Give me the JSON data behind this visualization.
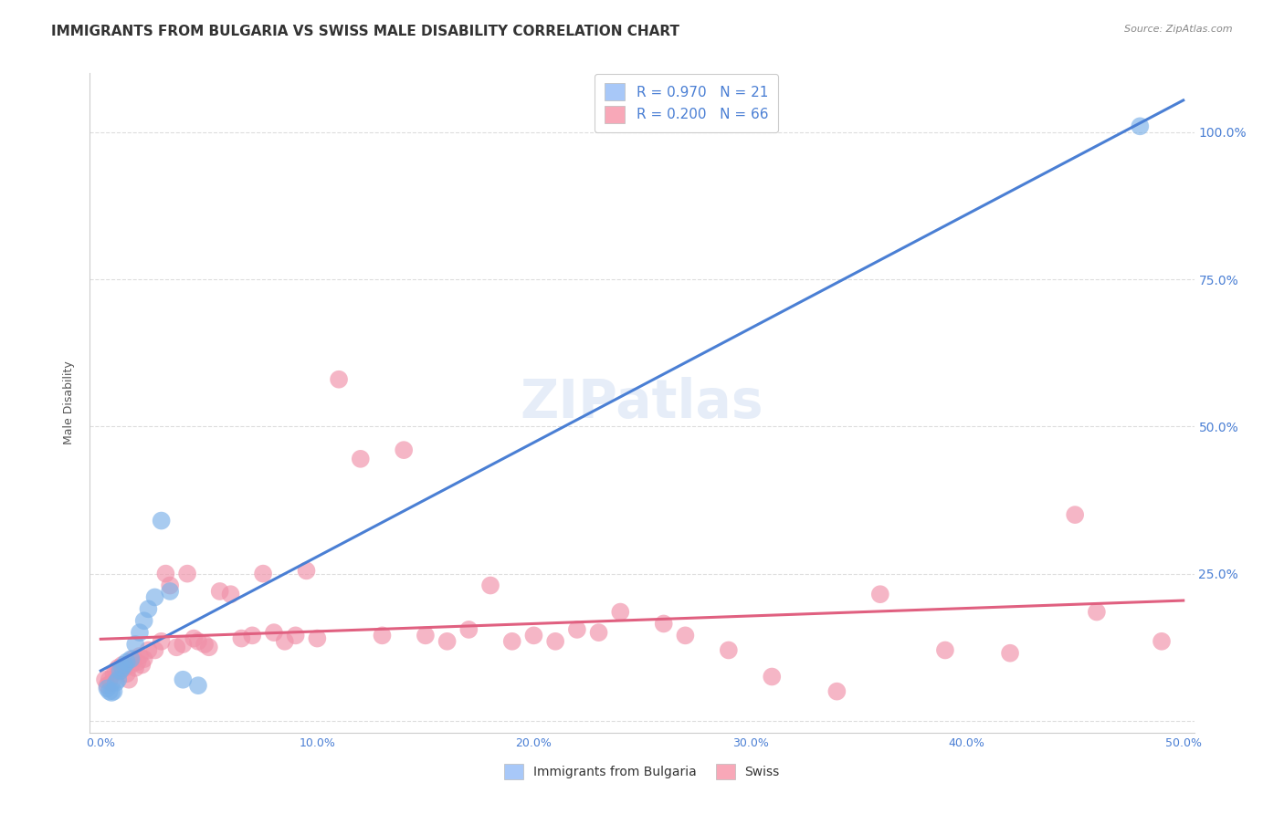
{
  "title": "IMMIGRANTS FROM BULGARIA VS SWISS MALE DISABILITY CORRELATION CHART",
  "source": "Source: ZipAtlas.com",
  "ylabel": "Male Disability",
  "xlim": [
    0.0,
    50.0
  ],
  "ylim": [
    -2.0,
    110.0
  ],
  "y_ticks": [
    0.0,
    25.0,
    50.0,
    75.0,
    100.0
  ],
  "y_tick_labels": [
    "",
    "25.0%",
    "50.0%",
    "75.0%",
    "100.0%"
  ],
  "x_ticks": [
    0.0,
    10.0,
    20.0,
    30.0,
    40.0,
    50.0
  ],
  "x_tick_labels": [
    "0.0%",
    "10.0%",
    "20.0%",
    "30.0%",
    "40.0%",
    "50.0%"
  ],
  "legend_labels_bottom": [
    "Immigrants from Bulgaria",
    "Swiss"
  ],
  "bulgaria_scatter_x": [
    0.3,
    0.4,
    0.5,
    0.6,
    0.7,
    0.8,
    0.9,
    1.0,
    1.1,
    1.2,
    1.4,
    1.6,
    1.8,
    2.0,
    2.2,
    2.5,
    2.8,
    3.2,
    3.8,
    4.5,
    48.0
  ],
  "bulgaria_scatter_y": [
    5.5,
    5.0,
    4.8,
    5.0,
    6.5,
    7.0,
    8.5,
    9.0,
    9.5,
    10.0,
    10.5,
    13.0,
    15.0,
    17.0,
    19.0,
    21.0,
    34.0,
    22.0,
    7.0,
    6.0,
    101.0
  ],
  "swiss_scatter_x": [
    0.2,
    0.3,
    0.4,
    0.5,
    0.6,
    0.7,
    0.8,
    0.9,
    1.0,
    1.1,
    1.2,
    1.3,
    1.4,
    1.5,
    1.6,
    1.7,
    1.8,
    1.9,
    2.0,
    2.2,
    2.5,
    2.8,
    3.0,
    3.2,
    3.5,
    3.8,
    4.0,
    4.3,
    4.5,
    4.8,
    5.0,
    5.5,
    6.0,
    6.5,
    7.0,
    7.5,
    8.0,
    8.5,
    9.0,
    9.5,
    10.0,
    11.0,
    12.0,
    13.0,
    14.0,
    15.0,
    16.0,
    17.0,
    18.0,
    19.0,
    20.0,
    21.0,
    22.0,
    23.0,
    24.0,
    26.0,
    27.0,
    29.0,
    31.0,
    34.0,
    36.0,
    39.0,
    42.0,
    45.0,
    46.0,
    49.0
  ],
  "swiss_scatter_y": [
    7.0,
    6.0,
    7.0,
    6.5,
    8.0,
    8.5,
    9.0,
    8.5,
    9.5,
    9.0,
    8.0,
    7.0,
    9.5,
    10.5,
    9.0,
    10.0,
    11.0,
    9.5,
    10.5,
    12.0,
    12.0,
    13.5,
    25.0,
    23.0,
    12.5,
    13.0,
    25.0,
    14.0,
    13.5,
    13.0,
    12.5,
    22.0,
    21.5,
    14.0,
    14.5,
    25.0,
    15.0,
    13.5,
    14.5,
    25.5,
    14.0,
    58.0,
    44.5,
    14.5,
    46.0,
    14.5,
    13.5,
    15.5,
    23.0,
    13.5,
    14.5,
    13.5,
    15.5,
    15.0,
    18.5,
    16.5,
    14.5,
    12.0,
    7.5,
    5.0,
    21.5,
    12.0,
    11.5,
    35.0,
    18.5,
    13.5
  ],
  "bg_color": "#ffffff",
  "grid_color": "#dddddd",
  "scatter_bulgaria_color": "#7ab0e8",
  "scatter_swiss_color": "#f090a8",
  "line_bulgaria_color": "#4a7fd4",
  "line_swiss_color": "#e06080",
  "title_fontsize": 11,
  "axis_label_fontsize": 9,
  "tick_fontsize": 9,
  "watermark_text": "ZIPatlas",
  "legend_r_n": [
    "R = 0.970   N = 21",
    "R = 0.200   N = 66"
  ],
  "legend_patch_colors": [
    "#a8c8f8",
    "#f8a8b8"
  ]
}
